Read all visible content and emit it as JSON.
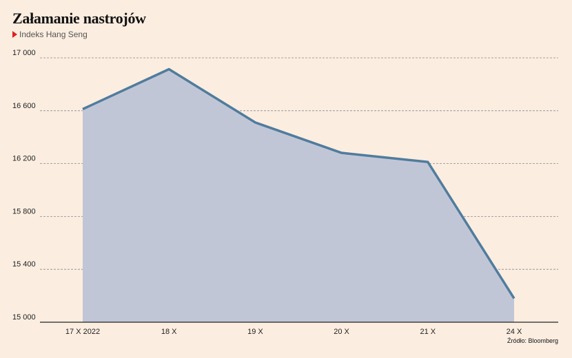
{
  "header": {
    "title": "Załamanie nastrojów",
    "subtitle": "Indeks Hang Seng"
  },
  "source": "Źródło: Bloomberg",
  "colors": {
    "background": "#fbede0",
    "line": "#4f7c9e",
    "area": "#c1c6d6",
    "marker": "#e02020"
  },
  "chart_data": {
    "type": "area",
    "title": "Załamanie nastrojów",
    "subtitle": "Indeks Hang Seng",
    "categories": [
      "17 X 2022",
      "18 X",
      "19 X",
      "20 X",
      "21 X",
      "24 X"
    ],
    "series": [
      {
        "values": [
          16612,
          16914,
          16511,
          16281,
          16212,
          15180
        ]
      }
    ],
    "ylim": [
      15000,
      17000
    ],
    "yticks": [
      15000,
      15400,
      15800,
      16200,
      16600,
      17000
    ],
    "ytick_labels": [
      "15 000",
      "15 400",
      "15 800",
      "16 200",
      "16 600",
      "17 000"
    ],
    "grid": true,
    "legend": "none"
  }
}
